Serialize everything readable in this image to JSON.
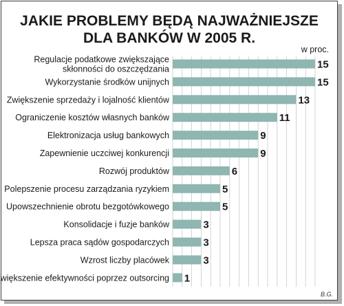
{
  "chart_data": {
    "type": "bar",
    "orientation": "horizontal",
    "title_lines": [
      "JAKIE PROBLEMY BĘDĄ NAJWAŻNIEJSZE",
      "DLA BANKÓW W 2005 R."
    ],
    "unit": "w proc.",
    "credit": "B.G.",
    "xlim": [
      0,
      15
    ],
    "grid": true,
    "bar_color": "#8fb6b1",
    "grid_color": "#c9c9c9",
    "categories": [
      [
        "Regulacje podatkowe zwiększające",
        "skłonności do oszczędzania"
      ],
      [
        "Wykorzystanie środków unijnych"
      ],
      [
        "Zwiększenie sprzedaży i lojalność klientów"
      ],
      [
        "Ograniczenie kosztów własnych banków"
      ],
      [
        "Elektronizacja usług bankowych"
      ],
      [
        "Zapewnienie uczciwej konkurencji"
      ],
      [
        "Rozwój produktów"
      ],
      [
        "Polepszenie procesu zarządzania ryzykiem"
      ],
      [
        "Upowszechnienie obrotu bezgotówkowego"
      ],
      [
        "Konsolidacje i fuzje banków"
      ],
      [
        "Lepsza praca sądów gospodarczych"
      ],
      [
        "Wzrost liczby placówek"
      ],
      [
        "Zwiększenie efektywności poprzez outsorcing"
      ]
    ],
    "values": [
      15,
      15,
      13,
      11,
      9,
      9,
      6,
      5,
      5,
      3,
      3,
      3,
      1
    ]
  }
}
